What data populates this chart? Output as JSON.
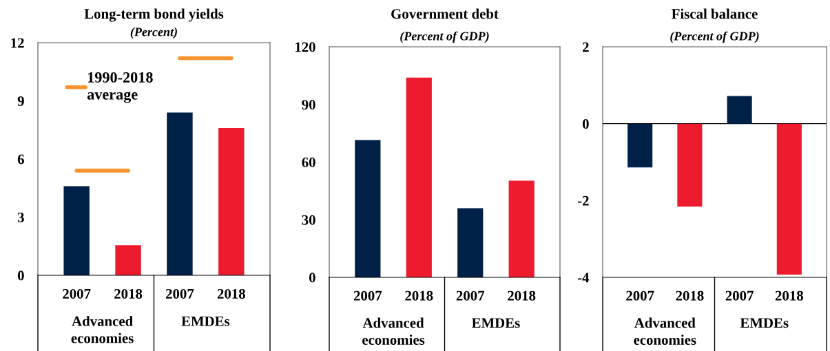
{
  "chart_data": [
    {
      "type": "bar",
      "title": "Long-term bond yields",
      "subtitle": "(Percent)",
      "categories": [
        "2007",
        "2018",
        "2007",
        "2018"
      ],
      "annotations": [
        "Advanced\neconomies",
        "EMDEs"
      ],
      "ylim": [
        0,
        12
      ],
      "yticks": [
        0,
        3,
        6,
        9,
        12
      ],
      "grid": false,
      "legend": "top left",
      "series": [
        {
          "colors": [
            "#002147",
            "#ec1c2e",
            "#002147",
            "#ec1c2e"
          ],
          "values": [
            4.6,
            1.55,
            8.4,
            7.6
          ]
        },
        {
          "type": "line",
          "name": "1990-2018\naverage",
          "color": "#f7932f",
          "values": [
            5.4,
            5.4,
            null,
            null
          ]
        },
        {
          "type": "line",
          "color": "#f7932f",
          "values": [
            null,
            null,
            11.2,
            11.2
          ]
        }
      ]
    },
    {
      "type": "bar",
      "title": "Government debt",
      "subtitle": "(Percent of GDP)",
      "categories": [
        "2007",
        "2018",
        "2007",
        "2018"
      ],
      "annotations": [
        "Advanced\neconomies",
        "EMDEs"
      ],
      "ylim": [
        0,
        120
      ],
      "yticks": [
        0,
        30,
        60,
        90,
        120
      ],
      "grid": false,
      "series": [
        {
          "colors": [
            "#002147",
            "#ec1c2e",
            "#002147",
            "#ec1c2e"
          ],
          "values": [
            71.5,
            104,
            36,
            50.3
          ]
        }
      ]
    },
    {
      "type": "bar",
      "title": "Fiscal balance",
      "subtitle": "(Percent of GDP)",
      "categories": [
        "2007",
        "2018",
        "2007",
        "2018"
      ],
      "annotations": [
        "Advanced\neconomies",
        "EMDEs"
      ],
      "ylim": [
        -4,
        2
      ],
      "yticks": [
        -4,
        -2,
        0,
        2
      ],
      "grid": false,
      "ref_lines": [
        {
          "axis": "y",
          "value": 0,
          "color": "#000000"
        }
      ],
      "series": [
        {
          "colors": [
            "#002147",
            "#ec1c2e",
            "#002147",
            "#ec1c2e"
          ],
          "values": [
            -1.14,
            -2.16,
            0.72,
            -3.93
          ]
        }
      ]
    }
  ]
}
